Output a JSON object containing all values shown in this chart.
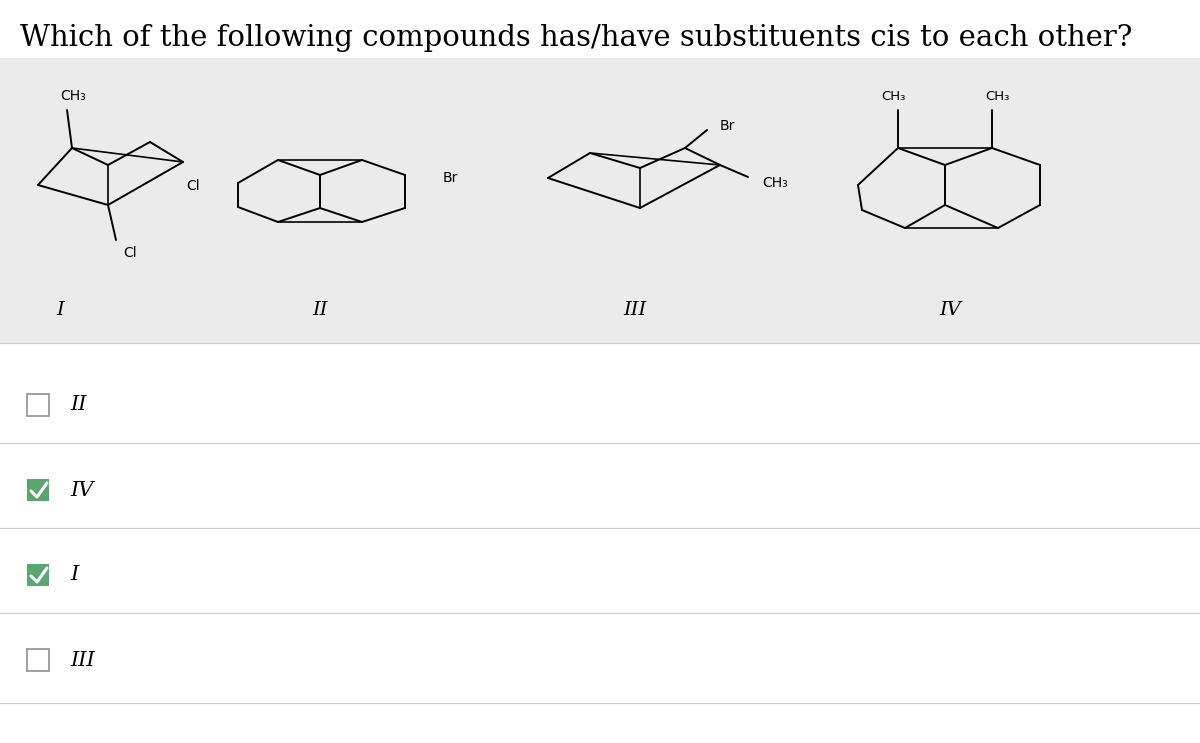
{
  "title": "Which of the following compounds has/have substituents cis to each other?",
  "title_fontsize": 20,
  "bg_color": "#ffffff",
  "panel_bg": "#ebebeb",
  "options": [
    {
      "label": "II",
      "checked": false
    },
    {
      "label": "IV",
      "checked": true
    },
    {
      "label": "I",
      "checked": true
    },
    {
      "label": "III",
      "checked": false
    }
  ],
  "line_color": "#000000",
  "text_color": "#000000",
  "lw": 1.4
}
